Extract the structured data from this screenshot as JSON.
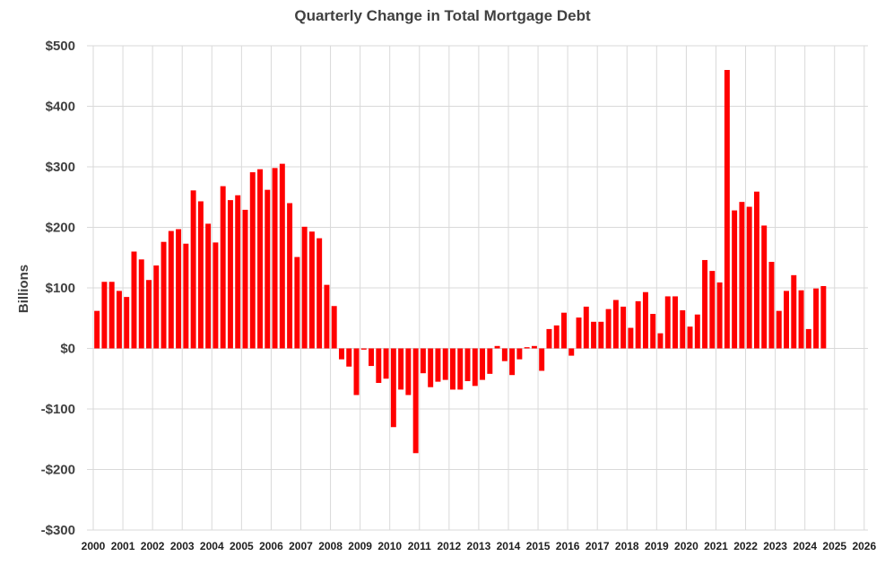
{
  "chart_data": {
    "type": "bar",
    "title": "Quarterly Change in Total Mortgage Debt",
    "ylabel": "Billions",
    "xlabel": "",
    "ylim": [
      -300,
      500
    ],
    "yticks": [
      500,
      400,
      300,
      200,
      100,
      0,
      -100,
      -200,
      -300
    ],
    "ytick_labels": [
      "$500",
      "$400",
      "$300",
      "$200",
      "$100",
      "$0",
      "-$100",
      "-$200",
      "-$300"
    ],
    "x_year_labels": [
      "2000",
      "2001",
      "2002",
      "2003",
      "2004",
      "2005",
      "2006",
      "2007",
      "2008",
      "2009",
      "2010",
      "2011",
      "2012",
      "2013",
      "2014",
      "2015",
      "2016",
      "2017",
      "2018",
      "2019",
      "2020",
      "2021",
      "2022",
      "2023",
      "2024",
      "2025",
      "2026"
    ],
    "grid": true,
    "bar_color": "#ff0000",
    "series": [
      {
        "start_year": 2000,
        "values": [
          62,
          110,
          110,
          95,
          85,
          160,
          147,
          113,
          137,
          176,
          194,
          197,
          173,
          261,
          243,
          206,
          175,
          268,
          245,
          253,
          229,
          291,
          296,
          262,
          298,
          305,
          240,
          151,
          201,
          193,
          182,
          105,
          70,
          -18,
          -30,
          -77,
          -2,
          -29,
          -57,
          -50,
          -130,
          -68,
          -77,
          -173,
          -41,
          -64,
          -55,
          -52,
          -68,
          -68,
          -54,
          -62,
          -52,
          -42,
          4,
          -21,
          -44,
          -18,
          2,
          4,
          -37,
          32,
          38,
          59,
          -12,
          51,
          69,
          44,
          44,
          65,
          80,
          69,
          34,
          78,
          93,
          57,
          25,
          86,
          86,
          63,
          36,
          56,
          146,
          128,
          109,
          460,
          228,
          242,
          234,
          259,
          203,
          143,
          62,
          95,
          121,
          96,
          32,
          99,
          103
        ]
      }
    ]
  }
}
